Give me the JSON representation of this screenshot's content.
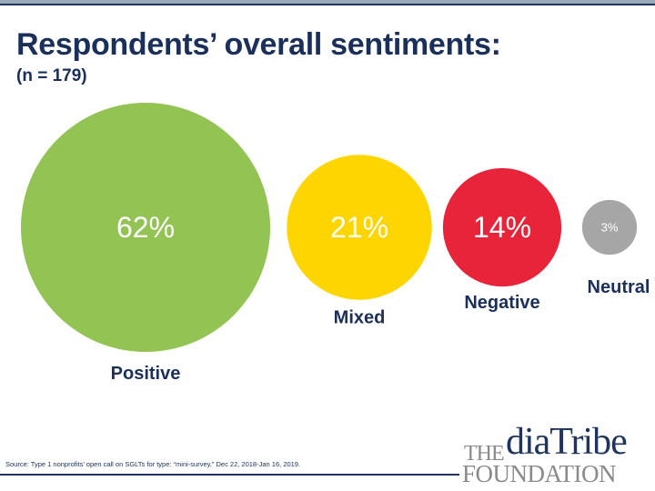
{
  "header": {
    "title": "Respondents’ overall sentiments:",
    "subtitle": "(n = 179)"
  },
  "chart_data": {
    "type": "bubble",
    "title": "Respondents’ overall sentiments:",
    "subtitle": "(n = 179)",
    "categories": [
      "Positive",
      "Mixed",
      "Negative",
      "Neutral"
    ],
    "values": [
      62,
      21,
      14,
      3
    ],
    "value_labels": [
      "62%",
      "21%",
      "14%",
      "3%"
    ],
    "unit": "%",
    "colors": [
      "#92c353",
      "#ffd500",
      "#e8243a",
      "#a6a6a6"
    ],
    "label_color": "#1a2f5a",
    "value_text_color": "#ffffff"
  },
  "footer": {
    "source": "Source: Type 1 nonprofits’ open call on SGLTs for type: “mini-survey,” Dec 22, 2018-Jan 16, 2019."
  },
  "logo": {
    "the": "THE",
    "diatribe": "diaTribe",
    "foundation": "FOUNDATION"
  }
}
